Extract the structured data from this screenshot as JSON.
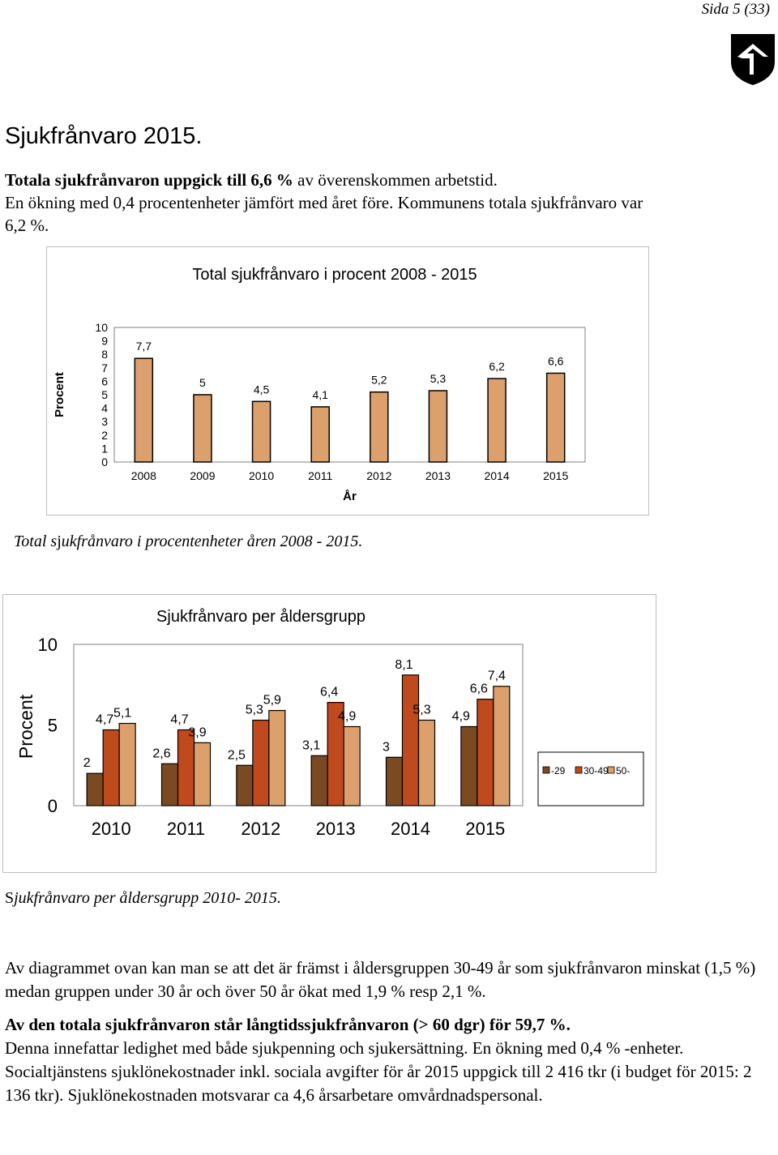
{
  "header": {
    "page_label": "Sida 5 (33)"
  },
  "heading": "Sjukfrånvaro 2015.",
  "intro": {
    "bold_part": "Totala sjukfrånvaron uppgick till 6,6 %",
    "line1_rest": " av överenskommen arbetstid.",
    "line2": "En ökning med 0,4 procentenheter jämfört med året före. Kommunens totala sjukfrånvaro var",
    "line3": "6,2 %."
  },
  "chart_data": [
    {
      "type": "bar",
      "title": "Total sjukfrånvaro i procent 2008 - 2015",
      "xlabel": "År",
      "ylabel": "Procent",
      "ylim": [
        0,
        10
      ],
      "yticks": [
        "0",
        "1",
        "2",
        "3",
        "4",
        "5",
        "6",
        "7",
        "8",
        "9",
        "10"
      ],
      "categories": [
        "2008",
        "2009",
        "2010",
        "2011",
        "2012",
        "2013",
        "2014",
        "2015"
      ],
      "values": [
        7.7,
        5,
        4.5,
        4.1,
        5.2,
        5.3,
        6.2,
        6.6
      ],
      "data_labels": [
        "7,7",
        "5",
        "4,5",
        "4,1",
        "5,2",
        "5,3",
        "6,2",
        "6,6"
      ],
      "color": "#dca06d"
    },
    {
      "type": "bar",
      "title": "Sjukfrånvaro per åldersgrupp",
      "ylabel": "Procent",
      "ylim": [
        0,
        10
      ],
      "yticks": [
        "0",
        "5",
        "10"
      ],
      "categories": [
        "2010",
        "2011",
        "2012",
        "2013",
        "2014",
        "2015"
      ],
      "series": [
        {
          "name": "-29",
          "values": [
            2,
            2.6,
            2.5,
            3.1,
            3,
            4.9
          ],
          "labels": [
            "2",
            "2,6",
            "2,5",
            "3,1",
            "3",
            "4,9"
          ],
          "color": "#7b4a23"
        },
        {
          "name": "30-49",
          "values": [
            4.7,
            4.7,
            5.3,
            6.4,
            8.1,
            6.6
          ],
          "labels": [
            "4,7",
            "4,7",
            "5,3",
            "6,4",
            "8,1",
            "6,6"
          ],
          "color": "#bf4a1e"
        },
        {
          "name": "50-",
          "values": [
            5.1,
            3.9,
            5.9,
            4.9,
            5.3,
            7.4
          ],
          "labels": [
            "5,1",
            "3,9",
            "5,9",
            "4,9",
            "5,3",
            "7,4"
          ],
          "color": "#dca06d"
        }
      ],
      "legend": "right"
    }
  ],
  "captions": {
    "chart1": {
      "pre": "Total s",
      "upright": "j",
      "post": "ukfrånvaro i procentenheter åren 2008 - 2015."
    },
    "chart2": {
      "pre": "S",
      "post": "jukfrånvaro per åldersgrupp 2010- 2015."
    }
  },
  "body": {
    "p1": "Av diagrammet ovan kan man se att det är främst i åldersgruppen 30-49 år som sjukfrånvaron minskat (1,5 %) medan gruppen under 30 år och över 50 år ökat med 1,9 % resp 2,1 %.",
    "p2": "Av den totala sjukfrånvaron står långtidssjukfrånvaron (> 60 dgr) för 59,7 %.",
    "p3": "Denna innefattar ledighet med både sjukpenning och sjukersättning. En ökning med 0,4 % -enheter.",
    "p4": "Socialtjänstens sjuklönekostnader inkl. sociala avgifter för år 2015 uppgick till 2 416 tkr (i budget för 2015: 2 136 tkr). Sjuklönekostnaden motsvarar ca 4,6 årsarbetare omvårdnadspersonal."
  }
}
